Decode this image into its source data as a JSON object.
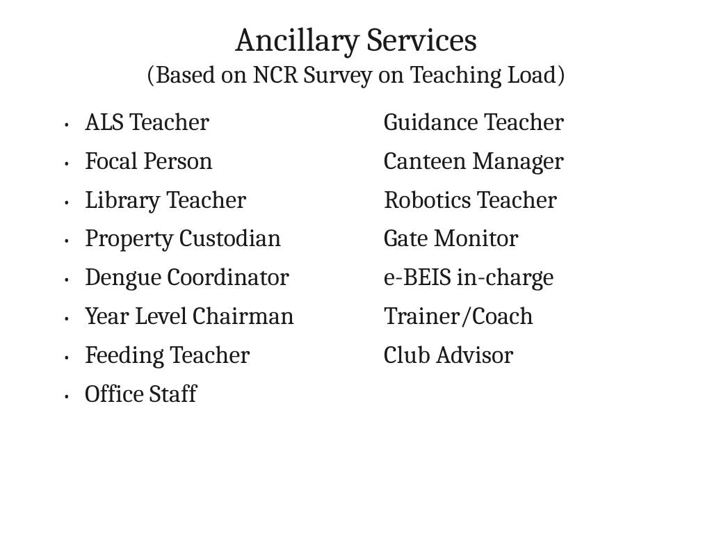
{
  "title": "Ancillary Services",
  "subtitle": "(Based on NCR Survey on Teaching Load)",
  "bullet_char": "•",
  "rows": [
    {
      "left": "ALS Teacher",
      "right": "Guidance Teacher"
    },
    {
      "left": "Focal Person",
      "right": "Canteen Manager"
    },
    {
      "left": "Library Teacher",
      "right": "Robotics Teacher"
    },
    {
      "left": "Property Custodian",
      "right": "Gate Monitor"
    },
    {
      "left": "Dengue Coordinator",
      "right": "e-BEIS in-charge"
    },
    {
      "left": "Year Level Chairman",
      "right": "Trainer/Coach"
    },
    {
      "left": "Feeding Teacher",
      "right": "Club Advisor"
    },
    {
      "left": "Office Staff",
      "right": ""
    }
  ],
  "colors": {
    "text": "#1a1a1a",
    "background": "#ffffff"
  },
  "fontsize": {
    "title": 48,
    "subtitle": 36,
    "body": 36
  }
}
